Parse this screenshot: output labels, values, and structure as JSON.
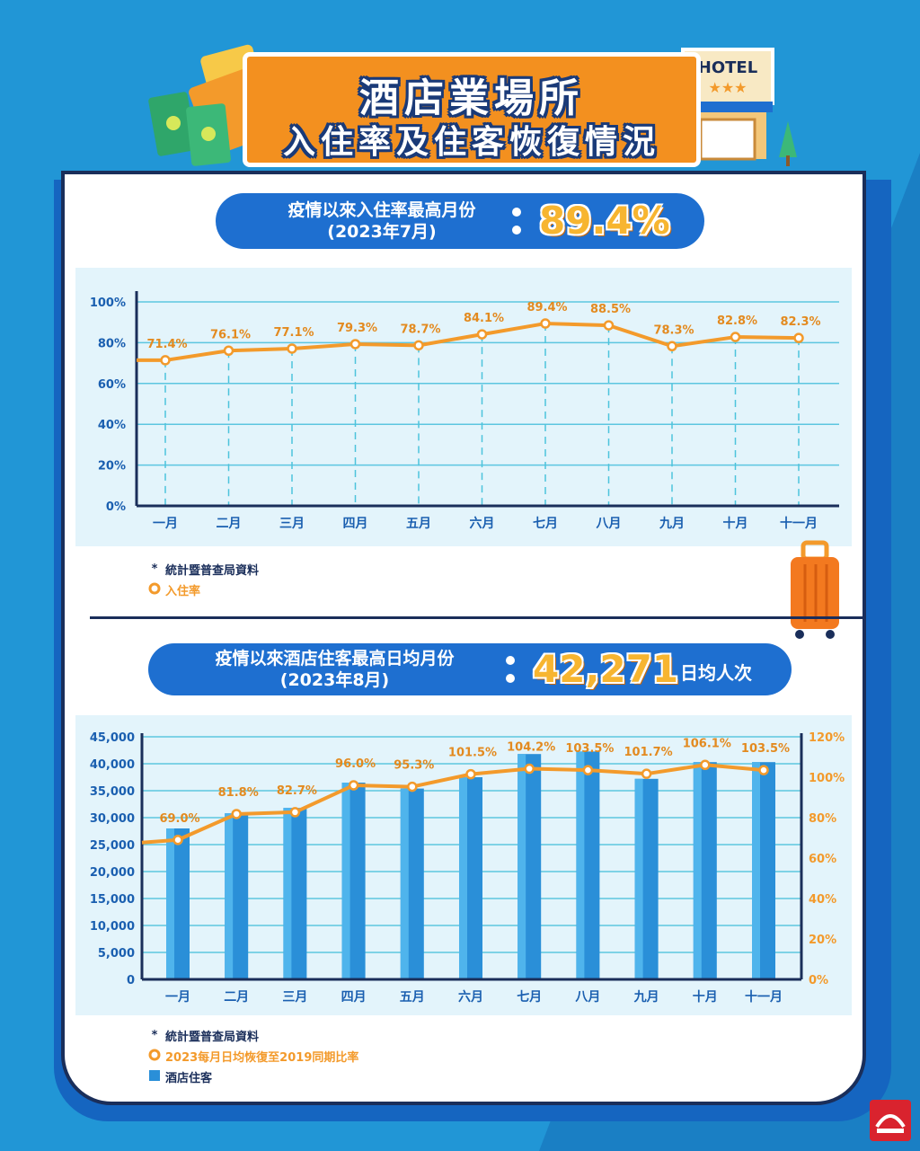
{
  "header": {
    "title_line1": "酒店業場所",
    "title_line2": "入住率及住客恢復情況"
  },
  "hotel_sign": "HOTEL",
  "colors": {
    "background": "#2196d6",
    "orange": "#f3901f",
    "navy": "#1a2e5a",
    "pill_blue": "#1e6fd0",
    "line_orange": "#f39a2b",
    "bar_blue": "#2a8fd8"
  },
  "section1": {
    "pill_line1": "疫情以來入住率最高月份",
    "pill_line2": "(2023年7月)",
    "big_value": "89.4%"
  },
  "section2": {
    "pill_line1": "疫情以來酒店住客最高日均月份",
    "pill_line2": "(2023年8月)",
    "big_value": "42,271",
    "unit": "日均人次"
  },
  "chart_data": [
    {
      "type": "line",
      "categories": [
        "一月",
        "二月",
        "三月",
        "四月",
        "五月",
        "六月",
        "七月",
        "八月",
        "九月",
        "十月",
        "十一月"
      ],
      "series": [
        {
          "name": "入住率",
          "values": [
            71.4,
            76.1,
            77.1,
            79.3,
            78.7,
            84.1,
            89.4,
            88.5,
            78.3,
            82.8,
            82.3
          ]
        }
      ],
      "data_labels": [
        "71.4%",
        "76.1%",
        "77.1%",
        "79.3%",
        "78.7%",
        "84.1%",
        "89.4%",
        "88.5%",
        "78.3%",
        "82.8%",
        "82.3%"
      ],
      "y_ticks": [
        "0%",
        "20%",
        "40%",
        "60%",
        "80%",
        "100%"
      ],
      "ylim": [
        0,
        100
      ],
      "legend": [
        {
          "marker": "*",
          "label": "統計暨普查局資料"
        },
        {
          "marker": "circle",
          "label": "入住率"
        }
      ]
    },
    {
      "type": "bar",
      "categories": [
        "一月",
        "二月",
        "三月",
        "四月",
        "五月",
        "六月",
        "七月",
        "八月",
        "九月",
        "十月",
        "十一月"
      ],
      "series": [
        {
          "name": "酒店住客",
          "type": "bar",
          "values": [
            28000,
            30800,
            31800,
            36500,
            35400,
            37500,
            41800,
            42271,
            37200,
            40300,
            40300
          ]
        },
        {
          "name": "2023每月日均恢復至2019同期比率",
          "type": "line",
          "axis": "right",
          "values": [
            69.0,
            81.8,
            82.7,
            96.0,
            95.3,
            101.5,
            104.2,
            103.5,
            101.7,
            106.1,
            103.5
          ]
        }
      ],
      "data_labels": [
        "69.0%",
        "81.8%",
        "82.7%",
        "96.0%",
        "95.3%",
        "101.5%",
        "104.2%",
        "103.5%",
        "101.7%",
        "106.1%",
        "103.5%"
      ],
      "y_ticks_left": [
        "0",
        "5,000",
        "10,000",
        "15,000",
        "20,000",
        "25,000",
        "30,000",
        "35,000",
        "40,000",
        "45,000"
      ],
      "y_ticks_right": [
        "0%",
        "20%",
        "40%",
        "60%",
        "80%",
        "100%",
        "120%"
      ],
      "ylim_left": [
        0,
        45000
      ],
      "ylim_right": [
        0,
        120
      ],
      "legend": [
        {
          "marker": "*",
          "label": "統計暨普查局資料"
        },
        {
          "marker": "circle",
          "label": "2023每月日均恢復至2019同期比率"
        },
        {
          "marker": "square",
          "label": "酒店住客"
        }
      ]
    }
  ]
}
